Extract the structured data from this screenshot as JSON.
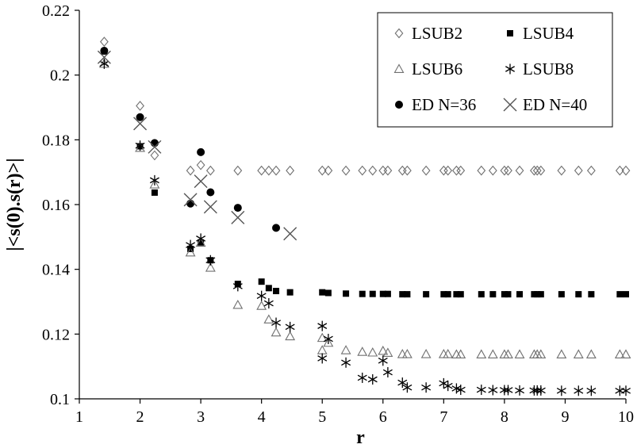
{
  "chart_data": {
    "type": "scatter",
    "xlabel": "r",
    "ylabel": "|<s(0).s(r)>|",
    "xlim": [
      1,
      10
    ],
    "ylim": [
      0.1,
      0.22
    ],
    "xticks": [
      "1",
      "2",
      "3",
      "4",
      "5",
      "6",
      "7",
      "8",
      "9",
      "10"
    ],
    "yticks": [
      "0.1",
      "0.12",
      "0.14",
      "0.16",
      "0.18",
      "0.2",
      "0.22"
    ],
    "grid": false,
    "legend_position": "top-right",
    "series": [
      {
        "name": "LSUB2",
        "marker": "diamond",
        "color": "#707070",
        "points": [
          [
            1.41,
            0.2103
          ],
          [
            2.0,
            0.1905
          ],
          [
            2.24,
            0.1752
          ],
          [
            2.83,
            0.1705
          ],
          [
            3.0,
            0.1722
          ],
          [
            3.16,
            0.1705
          ],
          [
            3.61,
            0.1705
          ],
          [
            4.0,
            0.1705
          ],
          [
            4.12,
            0.1705
          ],
          [
            4.24,
            0.1705
          ],
          [
            4.47,
            0.1705
          ],
          [
            5.0,
            0.1705
          ],
          [
            5.1,
            0.1705
          ],
          [
            5.39,
            0.1705
          ],
          [
            5.66,
            0.1705
          ],
          [
            5.83,
            0.1705
          ],
          [
            6.0,
            0.1705
          ],
          [
            6.08,
            0.1705
          ],
          [
            6.32,
            0.1705
          ],
          [
            6.4,
            0.1705
          ],
          [
            6.71,
            0.1705
          ],
          [
            7.0,
            0.1705
          ],
          [
            7.07,
            0.1705
          ],
          [
            7.21,
            0.1705
          ],
          [
            7.28,
            0.1705
          ],
          [
            7.62,
            0.1705
          ],
          [
            7.81,
            0.1705
          ],
          [
            8.0,
            0.1705
          ],
          [
            8.06,
            0.1705
          ],
          [
            8.25,
            0.1705
          ],
          [
            8.49,
            0.1705
          ],
          [
            8.54,
            0.1705
          ],
          [
            8.6,
            0.1705
          ],
          [
            8.94,
            0.1705
          ],
          [
            9.22,
            0.1705
          ],
          [
            9.43,
            0.1705
          ],
          [
            9.9,
            0.1705
          ],
          [
            10.0,
            0.1705
          ]
        ]
      },
      {
        "name": "LSUB4",
        "marker": "square",
        "color": "#000000",
        "points": [
          [
            1.41,
            0.2073
          ],
          [
            2.0,
            0.178
          ],
          [
            2.24,
            0.1637
          ],
          [
            2.83,
            0.1463
          ],
          [
            3.0,
            0.1483
          ],
          [
            3.16,
            0.1428
          ],
          [
            3.61,
            0.1355
          ],
          [
            4.0,
            0.1362
          ],
          [
            4.12,
            0.1342
          ],
          [
            4.24,
            0.1333
          ],
          [
            4.47,
            0.1329
          ],
          [
            5.0,
            0.1329
          ],
          [
            5.1,
            0.1327
          ],
          [
            5.39,
            0.1325
          ],
          [
            5.66,
            0.1324
          ],
          [
            5.83,
            0.1324
          ],
          [
            6.0,
            0.1324
          ],
          [
            6.08,
            0.1324
          ],
          [
            6.32,
            0.1323
          ],
          [
            6.4,
            0.1323
          ],
          [
            6.71,
            0.1323
          ],
          [
            7.0,
            0.1323
          ],
          [
            7.07,
            0.1323
          ],
          [
            7.21,
            0.1323
          ],
          [
            7.28,
            0.1323
          ],
          [
            7.62,
            0.1323
          ],
          [
            7.81,
            0.1323
          ],
          [
            8.0,
            0.1323
          ],
          [
            8.06,
            0.1323
          ],
          [
            8.25,
            0.1323
          ],
          [
            8.49,
            0.1323
          ],
          [
            8.54,
            0.1323
          ],
          [
            8.6,
            0.1323
          ],
          [
            8.94,
            0.1323
          ],
          [
            9.22,
            0.1323
          ],
          [
            9.43,
            0.1323
          ],
          [
            9.9,
            0.1323
          ],
          [
            10.0,
            0.1323
          ]
        ]
      },
      {
        "name": "LSUB6",
        "marker": "triangle",
        "color": "#707070",
        "points": [
          [
            1.41,
            0.2035
          ],
          [
            2.0,
            0.1775
          ],
          [
            2.24,
            0.1662
          ],
          [
            2.83,
            0.1452
          ],
          [
            3.0,
            0.1482
          ],
          [
            3.16,
            0.1405
          ],
          [
            3.61,
            0.129
          ],
          [
            4.0,
            0.1287
          ],
          [
            4.12,
            0.1245
          ],
          [
            4.24,
            0.1205
          ],
          [
            4.47,
            0.1193
          ],
          [
            5.0,
            0.1188
          ],
          [
            5.0,
            0.115
          ],
          [
            5.1,
            0.1173
          ],
          [
            5.39,
            0.115
          ],
          [
            5.66,
            0.1145
          ],
          [
            5.83,
            0.1143
          ],
          [
            6.0,
            0.1148
          ],
          [
            6.08,
            0.1142
          ],
          [
            6.32,
            0.1138
          ],
          [
            6.4,
            0.1138
          ],
          [
            6.71,
            0.1138
          ],
          [
            7.0,
            0.1138
          ],
          [
            7.07,
            0.1138
          ],
          [
            7.21,
            0.1137
          ],
          [
            7.28,
            0.1137
          ],
          [
            7.62,
            0.1137
          ],
          [
            7.81,
            0.1137
          ],
          [
            8.0,
            0.1137
          ],
          [
            8.06,
            0.1137
          ],
          [
            8.25,
            0.1137
          ],
          [
            8.49,
            0.1137
          ],
          [
            8.54,
            0.1137
          ],
          [
            8.6,
            0.1137
          ],
          [
            8.94,
            0.1137
          ],
          [
            9.22,
            0.1137
          ],
          [
            9.43,
            0.1137
          ],
          [
            9.9,
            0.1137
          ],
          [
            10.0,
            0.1137
          ]
        ]
      },
      {
        "name": "LSUB8",
        "marker": "asterisk",
        "color": "#000000",
        "points": [
          [
            1.41,
            0.2035
          ],
          [
            2.0,
            0.1782
          ],
          [
            2.24,
            0.1675
          ],
          [
            2.83,
            0.1475
          ],
          [
            3.0,
            0.1495
          ],
          [
            3.16,
            0.1428
          ],
          [
            3.61,
            0.1348
          ],
          [
            4.0,
            0.1318
          ],
          [
            4.12,
            0.1295
          ],
          [
            4.24,
            0.1235
          ],
          [
            4.47,
            0.1222
          ],
          [
            5.0,
            0.1225
          ],
          [
            5.0,
            0.1125
          ],
          [
            5.1,
            0.1185
          ],
          [
            5.39,
            0.1112
          ],
          [
            5.66,
            0.1065
          ],
          [
            5.83,
            0.106
          ],
          [
            6.0,
            0.1118
          ],
          [
            6.08,
            0.1082
          ],
          [
            6.32,
            0.105
          ],
          [
            6.4,
            0.1035
          ],
          [
            6.71,
            0.1035
          ],
          [
            7.0,
            0.1048
          ],
          [
            7.07,
            0.104
          ],
          [
            7.21,
            0.1032
          ],
          [
            7.28,
            0.1028
          ],
          [
            7.62,
            0.1028
          ],
          [
            7.81,
            0.1027
          ],
          [
            8.0,
            0.1027
          ],
          [
            8.06,
            0.1027
          ],
          [
            8.25,
            0.1026
          ],
          [
            8.49,
            0.1026
          ],
          [
            8.54,
            0.1026
          ],
          [
            8.6,
            0.1026
          ],
          [
            8.94,
            0.1025
          ],
          [
            9.22,
            0.1025
          ],
          [
            9.43,
            0.1025
          ],
          [
            9.9,
            0.1025
          ],
          [
            10.0,
            0.1025
          ]
        ]
      },
      {
        "name": "ED N=36",
        "marker": "circle",
        "color": "#000000",
        "points": [
          [
            1.41,
            0.2075
          ],
          [
            2.0,
            0.187
          ],
          [
            2.24,
            0.179
          ],
          [
            2.83,
            0.1603
          ],
          [
            3.0,
            0.1762
          ],
          [
            3.16,
            0.1638
          ],
          [
            3.61,
            0.159
          ],
          [
            4.24,
            0.1528
          ]
        ]
      },
      {
        "name": "ED N=40",
        "marker": "x",
        "color": "#555555",
        "points": [
          [
            1.41,
            0.2055
          ],
          [
            2.0,
            0.185
          ],
          [
            2.24,
            0.1778
          ],
          [
            2.83,
            0.1615
          ],
          [
            3.0,
            0.1672
          ],
          [
            3.16,
            0.1593
          ],
          [
            3.61,
            0.156
          ],
          [
            4.47,
            0.151
          ]
        ]
      }
    ]
  }
}
